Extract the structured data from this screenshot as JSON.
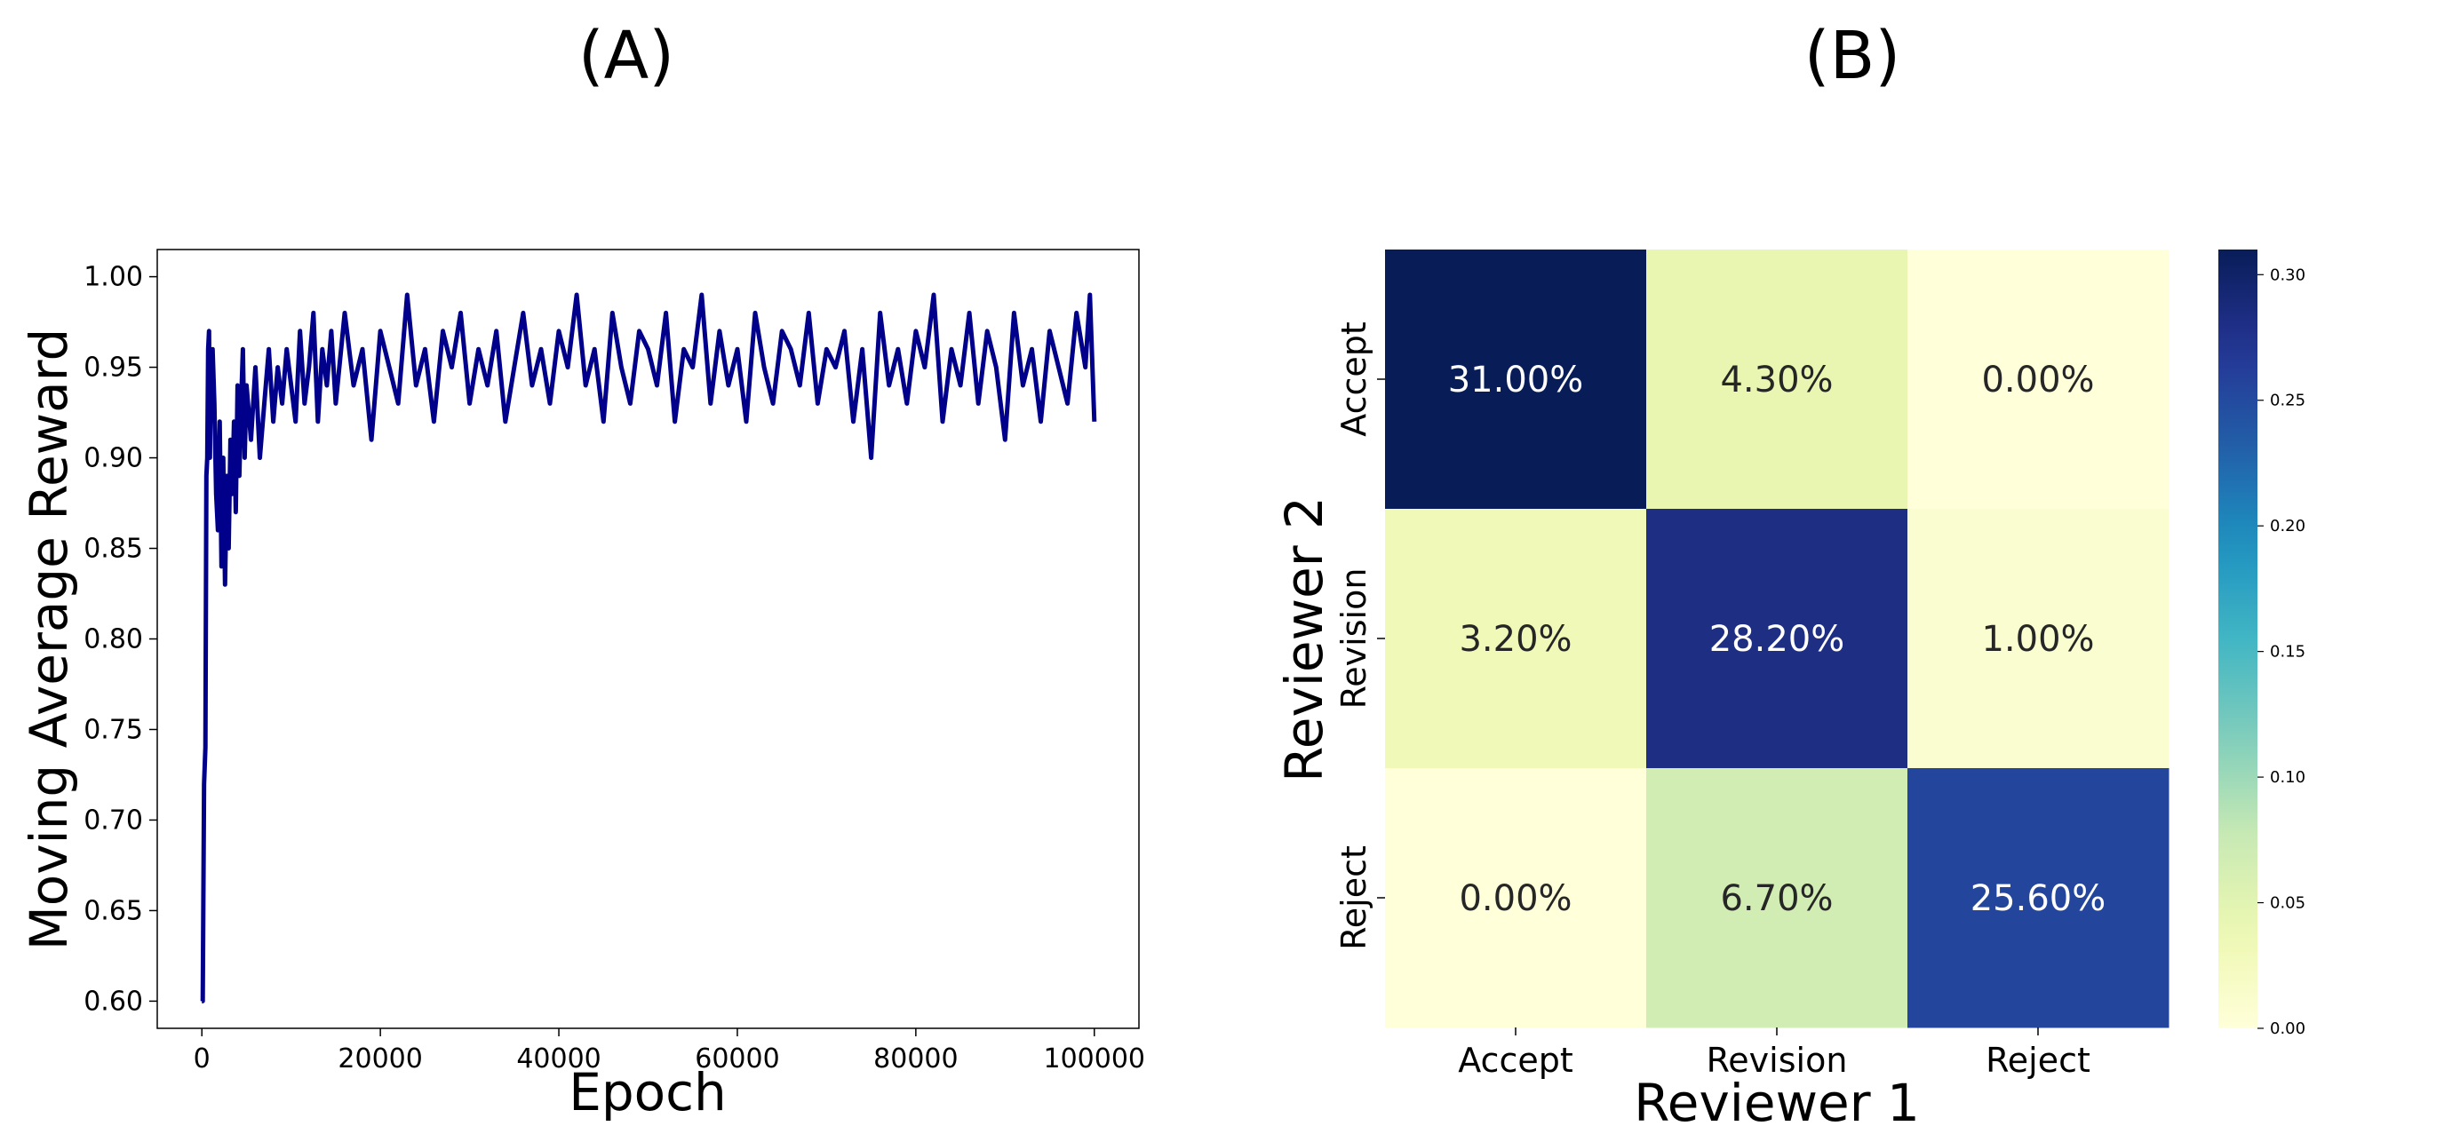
{
  "panels": {
    "a": {
      "label": "(A)"
    },
    "b": {
      "label": "(B)"
    }
  },
  "chart_data": [
    {
      "type": "line",
      "panel": "(A)",
      "title": "",
      "xlabel": "Epoch",
      "ylabel": "Moving Average Reward",
      "xlim": [
        -5000,
        105000
      ],
      "ylim": [
        0.585,
        1.015
      ],
      "xticks": [
        0,
        20000,
        40000,
        60000,
        80000,
        100000
      ],
      "xtick_labels": [
        "0",
        "20000",
        "40000",
        "60000",
        "80000",
        "100000"
      ],
      "yticks": [
        0.6,
        0.65,
        0.7,
        0.75,
        0.8,
        0.85,
        0.9,
        0.95,
        1.0
      ],
      "ytick_labels": [
        "0.60",
        "0.65",
        "0.70",
        "0.75",
        "0.80",
        "0.85",
        "0.90",
        "0.95",
        "1.00"
      ],
      "grid": false,
      "color": "#00008b",
      "series": [
        {
          "x": [
            0,
            100,
            250,
            400,
            500,
            600,
            700,
            800,
            900,
            1000,
            1200,
            1400,
            1600,
            1800,
            2000,
            2200,
            2400,
            2600,
            2800,
            3000,
            3200,
            3400,
            3600,
            3800,
            4000,
            4200,
            4400,
            4600,
            4800,
            5000,
            5500,
            6000,
            6500,
            7000,
            7500,
            8000,
            8500,
            9000,
            9500,
            10000,
            10500,
            11000,
            11500,
            12000,
            12500,
            13000,
            13500,
            14000,
            14500,
            15000,
            16000,
            17000,
            18000,
            19000,
            20000,
            21000,
            22000,
            23000,
            24000,
            25000,
            26000,
            27000,
            28000,
            29000,
            30000,
            31000,
            32000,
            33000,
            34000,
            35000,
            36000,
            37000,
            38000,
            39000,
            40000,
            41000,
            42000,
            43000,
            44000,
            45000,
            46000,
            47000,
            48000,
            49000,
            50000,
            51000,
            52000,
            53000,
            54000,
            55000,
            56000,
            57000,
            58000,
            59000,
            60000,
            61000,
            62000,
            63000,
            64000,
            65000,
            66000,
            67000,
            68000,
            69000,
            70000,
            71000,
            72000,
            73000,
            74000,
            75000,
            76000,
            77000,
            78000,
            79000,
            80000,
            81000,
            82000,
            83000,
            84000,
            85000,
            86000,
            87000,
            88000,
            89000,
            90000,
            91000,
            92000,
            93000,
            94000,
            95000,
            96000,
            97000,
            98000,
            99000,
            99500,
            100000
          ],
          "values": [
            0.6,
            0.6,
            0.72,
            0.74,
            0.89,
            0.9,
            0.96,
            0.97,
            0.9,
            0.95,
            0.96,
            0.93,
            0.88,
            0.86,
            0.92,
            0.84,
            0.9,
            0.83,
            0.89,
            0.85,
            0.91,
            0.88,
            0.92,
            0.87,
            0.94,
            0.89,
            0.93,
            0.96,
            0.9,
            0.94,
            0.91,
            0.95,
            0.9,
            0.93,
            0.96,
            0.92,
            0.95,
            0.93,
            0.96,
            0.94,
            0.92,
            0.97,
            0.93,
            0.95,
            0.98,
            0.92,
            0.96,
            0.94,
            0.97,
            0.93,
            0.98,
            0.94,
            0.96,
            0.91,
            0.97,
            0.95,
            0.93,
            0.99,
            0.94,
            0.96,
            0.92,
            0.97,
            0.95,
            0.98,
            0.93,
            0.96,
            0.94,
            0.97,
            0.92,
            0.95,
            0.98,
            0.94,
            0.96,
            0.93,
            0.97,
            0.95,
            0.99,
            0.94,
            0.96,
            0.92,
            0.98,
            0.95,
            0.93,
            0.97,
            0.96,
            0.94,
            0.98,
            0.92,
            0.96,
            0.95,
            0.99,
            0.93,
            0.97,
            0.94,
            0.96,
            0.92,
            0.98,
            0.95,
            0.93,
            0.97,
            0.96,
            0.94,
            0.98,
            0.93,
            0.96,
            0.95,
            0.97,
            0.92,
            0.96,
            0.9,
            0.98,
            0.94,
            0.96,
            0.93,
            0.97,
            0.95,
            0.99,
            0.92,
            0.96,
            0.94,
            0.98,
            0.93,
            0.97,
            0.95,
            0.91,
            0.98,
            0.94,
            0.96,
            0.92,
            0.97,
            0.95,
            0.93,
            0.98,
            0.95,
            0.99,
            0.92
          ]
        }
      ]
    },
    {
      "type": "heatmap",
      "panel": "(B)",
      "title": "",
      "xlabel": "Reviewer 1",
      "ylabel": "Reviewer 2",
      "x_categories": [
        "Accept",
        "Revision",
        "Reject"
      ],
      "y_categories": [
        "Accept",
        "Revision",
        "Reject"
      ],
      "values": [
        [
          0.31,
          0.043,
          0.0
        ],
        [
          0.032,
          0.282,
          0.01
        ],
        [
          0.0,
          0.067,
          0.256
        ]
      ],
      "cell_labels": [
        [
          "31.00%",
          "4.30%",
          "0.00%"
        ],
        [
          "3.20%",
          "28.20%",
          "1.00%"
        ],
        [
          "0.00%",
          "6.70%",
          "25.60%"
        ]
      ],
      "colormap": "YlGnBu",
      "colorbar": {
        "range": [
          0.0,
          0.31
        ],
        "ticks": [
          0.0,
          0.05,
          0.1,
          0.15,
          0.2,
          0.25,
          0.3
        ],
        "tick_labels": [
          "0.00",
          "0.05",
          "0.10",
          "0.15",
          "0.20",
          "0.25",
          "0.30"
        ]
      }
    }
  ]
}
